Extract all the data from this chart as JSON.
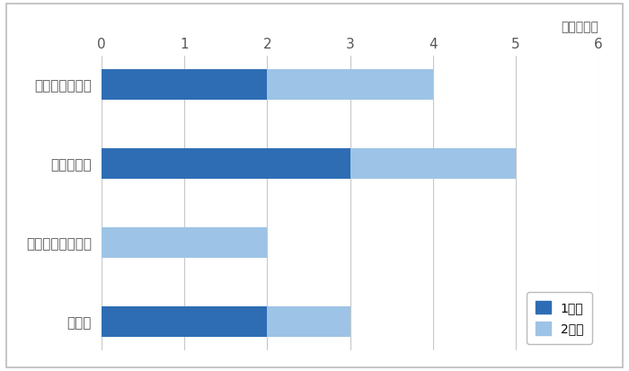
{
  "categories": [
    "患者数が少ない",
    "価格が低い",
    "追加投賄が大きい",
    "その他"
  ],
  "series1_label": "1番目",
  "series2_label": "2番目",
  "series1_values": [
    2,
    3,
    0,
    2
  ],
  "series2_values": [
    2,
    2,
    2,
    1
  ],
  "color1": "#2E6DB4",
  "color2": "#9DC3E6",
  "xlim": [
    0,
    6
  ],
  "xticks": [
    0,
    1,
    2,
    3,
    4,
    5,
    6
  ],
  "xlabel_unit": "（企業数）",
  "background_color": "#ffffff",
  "bar_height": 0.38,
  "border_color": "#BBBBBB"
}
